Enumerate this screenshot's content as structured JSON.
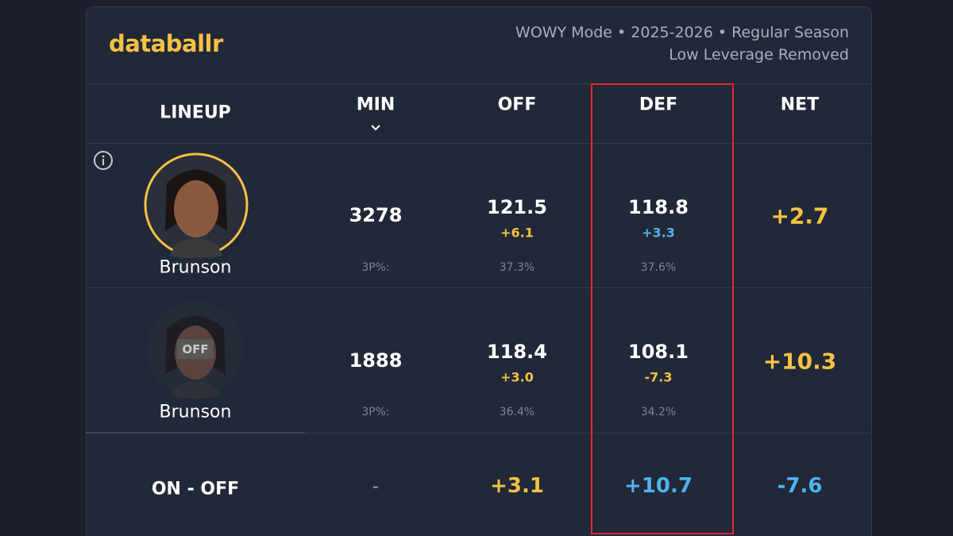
{
  "header": {
    "brand": "databallr",
    "subtitle": [
      "WOWY Mode • 2025-2026 • Regular Season",
      "Low Leverage Removed"
    ]
  },
  "table": {
    "columns": [
      "LINEUP",
      "MIN",
      "OFF",
      "DEF",
      "NET"
    ],
    "rows": [
      {
        "player": "Brunson",
        "min": "3278",
        "off": "121.5",
        "off_diff": "+6.1",
        "def": "118.8",
        "def_diff": "+3.3",
        "net": "+2.7",
        "three_label": "3P%:",
        "off_3p": "37.3%",
        "def_3p": "37.6%"
      },
      {
        "player": "Brunson",
        "badge": "OFF",
        "min": "1888",
        "off": "118.4",
        "off_diff": "+3.0",
        "def": "108.1",
        "def_diff": "-7.3",
        "net": "+10.3",
        "three_label": "3P%:",
        "off_3p": "36.4%",
        "def_3p": "34.2%"
      }
    ],
    "summary": {
      "label": "ON - OFF",
      "min": "-",
      "off": "+3.1",
      "def": "+10.7",
      "net": "-7.6"
    }
  }
}
